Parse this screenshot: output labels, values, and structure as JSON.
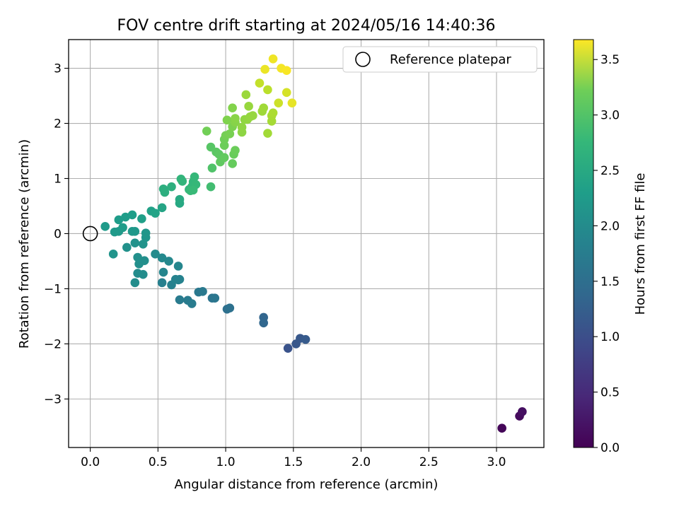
{
  "chart_data": {
    "type": "scatter",
    "title": "FOV centre drift starting at 2024/05/16 14:40:36",
    "xlabel": "Angular distance from reference (arcmin)",
    "ylabel": "Rotation from reference (arcmin)",
    "xlim": [
      -0.16,
      3.35
    ],
    "ylim": [
      -3.88,
      3.52
    ],
    "xticks": [
      0.0,
      0.5,
      1.0,
      1.5,
      2.0,
      2.5,
      3.0
    ],
    "xtick_labels": [
      "0.0",
      "0.5",
      "1.0",
      "1.5",
      "2.0",
      "2.5",
      "3.0"
    ],
    "yticks": [
      -3,
      -2,
      -1,
      0,
      1,
      2,
      3
    ],
    "ytick_labels": [
      "−3",
      "−2",
      "−1",
      "0",
      "1",
      "2",
      "3"
    ],
    "grid": true,
    "legend": {
      "position": "top-right",
      "entries": [
        "Reference platepar"
      ]
    },
    "reference_point": {
      "x": 0.0,
      "y": 0.0
    },
    "colorbar": {
      "label": "Hours from first FF file",
      "colormap": "viridis",
      "range": [
        0.0,
        3.68
      ],
      "ticks": [
        0.0,
        0.5,
        1.0,
        1.5,
        2.0,
        2.5,
        3.0,
        3.5
      ],
      "tick_labels": [
        "0.0",
        "0.5",
        "1.0",
        "1.5",
        "2.0",
        "2.5",
        "3.0",
        "3.5"
      ]
    },
    "series": [
      {
        "points": [
          {
            "x": 3.04,
            "y": -3.53,
            "t": 0.05
          },
          {
            "x": 3.17,
            "y": -3.31,
            "t": 0.1
          },
          {
            "x": 3.19,
            "y": -3.23,
            "t": 0.15
          },
          {
            "x": 1.46,
            "y": -2.08,
            "t": 0.95
          },
          {
            "x": 1.52,
            "y": -2.0,
            "t": 1.0
          },
          {
            "x": 1.55,
            "y": -1.9,
            "t": 1.02
          },
          {
            "x": 1.59,
            "y": -1.92,
            "t": 1.05
          },
          {
            "x": 1.28,
            "y": -1.52,
            "t": 1.2
          },
          {
            "x": 1.28,
            "y": -1.62,
            "t": 1.22
          },
          {
            "x": 1.01,
            "y": -1.37,
            "t": 1.35
          },
          {
            "x": 1.03,
            "y": -1.35,
            "t": 1.37
          },
          {
            "x": 0.9,
            "y": -1.17,
            "t": 1.42
          },
          {
            "x": 0.92,
            "y": -1.17,
            "t": 1.44
          },
          {
            "x": 0.8,
            "y": -1.06,
            "t": 1.48
          },
          {
            "x": 0.83,
            "y": -1.05,
            "t": 1.5
          },
          {
            "x": 0.66,
            "y": -1.2,
            "t": 1.52
          },
          {
            "x": 0.72,
            "y": -1.21,
            "t": 1.53
          },
          {
            "x": 0.75,
            "y": -1.27,
            "t": 1.54
          },
          {
            "x": 0.53,
            "y": -0.89,
            "t": 1.6
          },
          {
            "x": 0.6,
            "y": -0.93,
            "t": 1.62
          },
          {
            "x": 0.65,
            "y": -0.84,
            "t": 1.63
          },
          {
            "x": 0.66,
            "y": -0.83,
            "t": 1.64
          },
          {
            "x": 0.63,
            "y": -0.83,
            "t": 1.65
          },
          {
            "x": 0.54,
            "y": -0.7,
            "t": 1.68
          },
          {
            "x": 0.65,
            "y": -0.59,
            "t": 1.7
          },
          {
            "x": 0.58,
            "y": -0.5,
            "t": 1.72
          },
          {
            "x": 0.53,
            "y": -0.44,
            "t": 1.74
          },
          {
            "x": 0.48,
            "y": -0.37,
            "t": 1.76
          },
          {
            "x": 0.35,
            "y": -0.72,
            "t": 1.78
          },
          {
            "x": 0.39,
            "y": -0.74,
            "t": 1.79
          },
          {
            "x": 0.33,
            "y": -0.89,
            "t": 1.8
          },
          {
            "x": 0.36,
            "y": -0.55,
            "t": 1.82
          },
          {
            "x": 0.4,
            "y": -0.49,
            "t": 1.83
          },
          {
            "x": 0.35,
            "y": -0.43,
            "t": 1.84
          },
          {
            "x": 0.27,
            "y": -0.25,
            "t": 1.86
          },
          {
            "x": 0.33,
            "y": -0.17,
            "t": 1.87
          },
          {
            "x": 0.39,
            "y": -0.19,
            "t": 1.88
          },
          {
            "x": 0.17,
            "y": -0.37,
            "t": 1.9
          },
          {
            "x": 0.41,
            "y": -0.07,
            "t": 1.92
          },
          {
            "x": 0.41,
            "y": 0.01,
            "t": 1.93
          },
          {
            "x": 0.31,
            "y": 0.04,
            "t": 1.95
          },
          {
            "x": 0.33,
            "y": 0.04,
            "t": 1.96
          },
          {
            "x": 0.21,
            "y": 0.04,
            "t": 1.97
          },
          {
            "x": 0.18,
            "y": 0.03,
            "t": 1.98
          },
          {
            "x": 0.11,
            "y": 0.13,
            "t": 2.0
          },
          {
            "x": 0.24,
            "y": 0.11,
            "t": 2.01
          },
          {
            "x": 0.21,
            "y": 0.25,
            "t": 2.02
          },
          {
            "x": 0.26,
            "y": 0.3,
            "t": 2.03
          },
          {
            "x": 0.31,
            "y": 0.34,
            "t": 2.04
          },
          {
            "x": 0.38,
            "y": 0.27,
            "t": 2.06
          },
          {
            "x": 0.45,
            "y": 0.41,
            "t": 2.1
          },
          {
            "x": 0.48,
            "y": 0.37,
            "t": 2.12
          },
          {
            "x": 0.53,
            "y": 0.47,
            "t": 2.15
          },
          {
            "x": 0.66,
            "y": 0.55,
            "t": 2.2
          },
          {
            "x": 0.66,
            "y": 0.62,
            "t": 2.22
          },
          {
            "x": 0.54,
            "y": 0.81,
            "t": 2.3
          },
          {
            "x": 0.55,
            "y": 0.75,
            "t": 2.31
          },
          {
            "x": 0.6,
            "y": 0.85,
            "t": 2.33
          },
          {
            "x": 0.67,
            "y": 0.99,
            "t": 2.4
          },
          {
            "x": 0.68,
            "y": 0.95,
            "t": 2.41
          },
          {
            "x": 0.73,
            "y": 0.8,
            "t": 2.42
          },
          {
            "x": 0.75,
            "y": 0.85,
            "t": 2.43
          },
          {
            "x": 0.76,
            "y": 0.94,
            "t": 2.44
          },
          {
            "x": 0.77,
            "y": 1.03,
            "t": 2.45
          },
          {
            "x": 0.78,
            "y": 0.89,
            "t": 2.46
          },
          {
            "x": 0.74,
            "y": 0.78,
            "t": 2.47
          },
          {
            "x": 0.76,
            "y": 0.79,
            "t": 2.48
          },
          {
            "x": 0.89,
            "y": 0.85,
            "t": 2.55
          },
          {
            "x": 0.9,
            "y": 1.19,
            "t": 2.65
          },
          {
            "x": 0.89,
            "y": 1.57,
            "t": 2.7
          },
          {
            "x": 0.93,
            "y": 1.48,
            "t": 2.72
          },
          {
            "x": 0.95,
            "y": 1.44,
            "t": 2.74
          },
          {
            "x": 0.96,
            "y": 1.3,
            "t": 2.76
          },
          {
            "x": 0.99,
            "y": 1.38,
            "t": 2.78
          },
          {
            "x": 1.05,
            "y": 1.27,
            "t": 2.8
          },
          {
            "x": 1.06,
            "y": 1.44,
            "t": 2.82
          },
          {
            "x": 1.07,
            "y": 1.51,
            "t": 2.84
          },
          {
            "x": 0.99,
            "y": 1.6,
            "t": 2.85
          },
          {
            "x": 0.99,
            "y": 1.71,
            "t": 2.86
          },
          {
            "x": 0.86,
            "y": 1.86,
            "t": 2.88
          },
          {
            "x": 1.0,
            "y": 1.78,
            "t": 2.9
          },
          {
            "x": 1.03,
            "y": 1.81,
            "t": 2.92
          },
          {
            "x": 1.05,
            "y": 1.94,
            "t": 2.94
          },
          {
            "x": 1.01,
            "y": 2.06,
            "t": 2.96
          },
          {
            "x": 1.05,
            "y": 2.28,
            "t": 2.98
          },
          {
            "x": 1.07,
            "y": 2.02,
            "t": 3.0
          },
          {
            "x": 1.07,
            "y": 2.09,
            "t": 3.02
          },
          {
            "x": 1.12,
            "y": 1.84,
            "t": 3.04
          },
          {
            "x": 1.12,
            "y": 1.93,
            "t": 3.05
          },
          {
            "x": 1.14,
            "y": 2.07,
            "t": 3.06
          },
          {
            "x": 1.16,
            "y": 2.07,
            "t": 3.07
          },
          {
            "x": 1.18,
            "y": 2.12,
            "t": 3.08
          },
          {
            "x": 1.2,
            "y": 2.14,
            "t": 3.09
          },
          {
            "x": 1.17,
            "y": 2.31,
            "t": 3.1
          },
          {
            "x": 1.15,
            "y": 2.52,
            "t": 3.12
          },
          {
            "x": 1.27,
            "y": 2.22,
            "t": 3.14
          },
          {
            "x": 1.28,
            "y": 2.28,
            "t": 3.15
          },
          {
            "x": 1.31,
            "y": 1.82,
            "t": 3.16
          },
          {
            "x": 1.34,
            "y": 2.04,
            "t": 3.18
          },
          {
            "x": 1.34,
            "y": 2.14,
            "t": 3.2
          },
          {
            "x": 1.35,
            "y": 2.19,
            "t": 3.22
          },
          {
            "x": 1.31,
            "y": 2.61,
            "t": 3.3
          },
          {
            "x": 1.25,
            "y": 2.73,
            "t": 3.35
          },
          {
            "x": 1.39,
            "y": 2.37,
            "t": 3.4
          },
          {
            "x": 1.45,
            "y": 2.56,
            "t": 3.45
          },
          {
            "x": 1.49,
            "y": 2.37,
            "t": 3.55
          },
          {
            "x": 1.29,
            "y": 2.98,
            "t": 3.58
          },
          {
            "x": 1.35,
            "y": 3.17,
            "t": 3.6
          },
          {
            "x": 1.41,
            "y": 3.0,
            "t": 3.63
          },
          {
            "x": 1.45,
            "y": 2.96,
            "t": 3.65
          }
        ]
      }
    ]
  }
}
